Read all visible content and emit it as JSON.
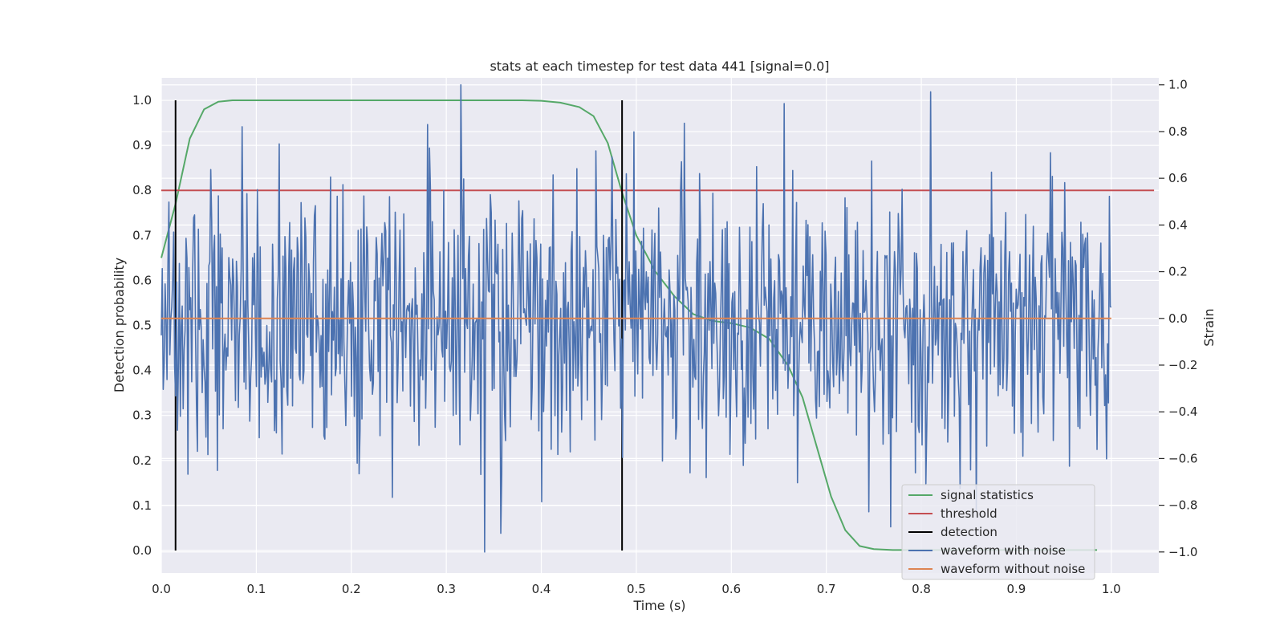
{
  "chart_data": {
    "type": "line",
    "title": "stats at each timestep for test data 441 [signal=0.0]",
    "xlabel": "Time (s)",
    "ylabel": "Detection probability",
    "y2label": "Strain",
    "xlim": [
      0.0,
      1.05
    ],
    "ylim": [
      -0.05,
      1.05
    ],
    "y2lim": [
      -1.09,
      1.03
    ],
    "xticks": [
      0.0,
      0.1,
      0.2,
      0.3,
      0.4,
      0.5,
      0.6,
      0.7,
      0.8,
      0.9,
      1.0
    ],
    "xtick_labels": [
      "0.0",
      "0.1",
      "0.2",
      "0.3",
      "0.4",
      "0.5",
      "0.6",
      "0.7",
      "0.8",
      "0.9",
      "1.0"
    ],
    "yticks": [
      0.0,
      0.1,
      0.2,
      0.3,
      0.4,
      0.5,
      0.6,
      0.7,
      0.8,
      0.9,
      1.0
    ],
    "ytick_labels": [
      "0.0",
      "0.1",
      "0.2",
      "0.3",
      "0.4",
      "0.5",
      "0.6",
      "0.7",
      "0.8",
      "0.9",
      "1.0"
    ],
    "y2ticks": [
      -1.0,
      -0.8,
      -0.6,
      -0.4,
      -0.2,
      0.0,
      0.2,
      0.4,
      0.6,
      0.8,
      1.0
    ],
    "y2tick_labels": [
      "−1.0",
      "−0.8",
      "−0.6",
      "−0.4",
      "−0.2",
      "0.0",
      "0.2",
      "0.4",
      "0.6",
      "0.8",
      "1.0"
    ],
    "grid": true,
    "legend_position": "lower-right",
    "series": [
      {
        "name": "signal statistics",
        "color": "#55a868",
        "axis": "left",
        "x": [
          0.0,
          0.015,
          0.03,
          0.045,
          0.06,
          0.075,
          0.09,
          0.2,
          0.3,
          0.38,
          0.4,
          0.42,
          0.44,
          0.455,
          0.47,
          0.485,
          0.5,
          0.52,
          0.54,
          0.56,
          0.58,
          0.6,
          0.62,
          0.64,
          0.66,
          0.675,
          0.69,
          0.705,
          0.72,
          0.735,
          0.75,
          0.77,
          0.8,
          0.9,
          0.985
        ],
        "y": [
          0.65,
          0.77,
          0.915,
          0.98,
          0.997,
          1.0,
          1.0,
          1.0,
          1.0,
          1.0,
          0.999,
          0.995,
          0.985,
          0.965,
          0.905,
          0.795,
          0.7,
          0.62,
          0.565,
          0.525,
          0.51,
          0.505,
          0.495,
          0.47,
          0.41,
          0.34,
          0.23,
          0.12,
          0.045,
          0.01,
          0.003,
          0.001,
          0.001,
          0.001,
          0.001
        ]
      },
      {
        "name": "threshold",
        "color": "#c44e52",
        "axis": "left",
        "x": [
          0.0,
          1.045
        ],
        "y": [
          0.8,
          0.8
        ]
      },
      {
        "name": "detection",
        "color": "#000000",
        "axis": "left",
        "segments": [
          {
            "x": 0.015,
            "y": [
              0.0,
              1.0
            ]
          },
          {
            "x": 0.485,
            "y": [
              0.0,
              1.0
            ]
          }
        ]
      },
      {
        "name": "waveform with noise",
        "color": "#4c72b0",
        "axis": "right",
        "x_range": [
          0.0,
          1.0
        ],
        "samples": 1000,
        "y_range": [
          -1.0,
          1.0
        ],
        "peaks": [
          {
            "x": 0.315,
            "y": 1.0
          },
          {
            "x": 0.81,
            "y": 0.97
          },
          {
            "x": 0.28,
            "y": 0.83
          },
          {
            "x": 0.34,
            "y": -1.0
          },
          {
            "x": 0.858,
            "y": -0.82
          }
        ]
      },
      {
        "name": "waveform without noise",
        "color": "#dd8452",
        "axis": "right",
        "x": [
          0.0,
          1.0
        ],
        "y": [
          0.0,
          0.0
        ]
      }
    ]
  },
  "legend": {
    "items": [
      {
        "label": "signal statistics",
        "color": "#55a868"
      },
      {
        "label": "threshold",
        "color": "#c44e52"
      },
      {
        "label": "detection",
        "color": "#000000"
      },
      {
        "label": "waveform with noise",
        "color": "#4c72b0"
      },
      {
        "label": "waveform without noise",
        "color": "#dd8452"
      }
    ]
  },
  "colors": {
    "plot_background": "#eaeaf2",
    "grid": "#ffffff",
    "text": "#262626"
  }
}
